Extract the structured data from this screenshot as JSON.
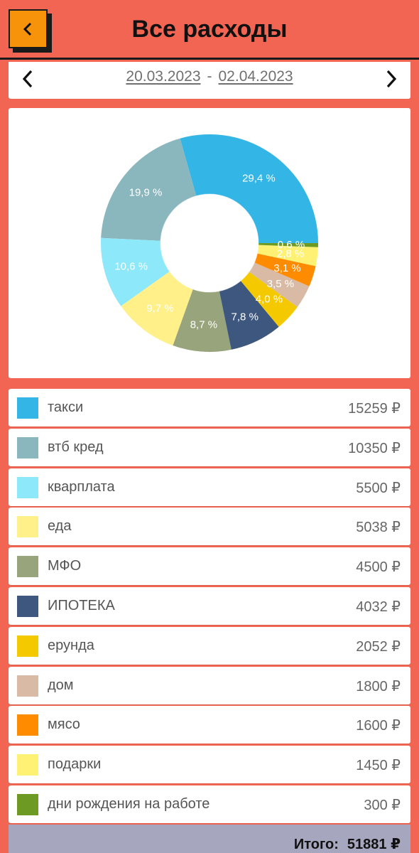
{
  "header": {
    "title": "Все расходы",
    "back_icon": "chevron-left-icon"
  },
  "period": {
    "from": "20.03.2023",
    "separator": "-",
    "to": "02.04.2023",
    "prev_icon": "chevron-left-icon",
    "next_icon": "chevron-right-icon"
  },
  "chart_data": {
    "type": "pie",
    "title": "",
    "donut": true,
    "slices": [
      {
        "label": "такси",
        "value": 29.4,
        "display": "29,4 %",
        "color": "#33b5e5"
      },
      {
        "label": "втб кред",
        "value": 19.9,
        "display": "19,9 %",
        "color": "#8ab6bd"
      },
      {
        "label": "кварплата",
        "value": 10.6,
        "display": "10,6 %",
        "color": "#8de8fa"
      },
      {
        "label": "еда",
        "value": 9.7,
        "display": "9,7 %",
        "color": "#fff08a"
      },
      {
        "label": "МФО",
        "value": 8.7,
        "display": "8,7 %",
        "color": "#97a47c"
      },
      {
        "label": "ИПОТЕКА",
        "value": 7.8,
        "display": "7,8 %",
        "color": "#3e577f"
      },
      {
        "label": "ерунда",
        "value": 4.0,
        "display": "4,0 %",
        "color": "#f5c900"
      },
      {
        "label": "дом",
        "value": 3.5,
        "display": "3,5 %",
        "color": "#d9bba5"
      },
      {
        "label": "мясо",
        "value": 3.1,
        "display": "3,1 %",
        "color": "#ff8c00"
      },
      {
        "label": "подарки",
        "value": 2.8,
        "display": "2,8 %",
        "color": "#fff173"
      },
      {
        "label": "дни рождения на работе",
        "value": 0.6,
        "display": "0,6 %",
        "color": "#6d9a22"
      }
    ]
  },
  "expenses": [
    {
      "label": "такси",
      "amount": "15259 ₽",
      "color": "#33b5e5"
    },
    {
      "label": "втб кред",
      "amount": "10350 ₽",
      "color": "#8ab6bd"
    },
    {
      "label": "кварплата",
      "amount": "5500 ₽",
      "color": "#8de8fa"
    },
    {
      "label": "еда",
      "amount": "5038 ₽",
      "color": "#fff08a"
    },
    {
      "label": "МФО",
      "amount": "4500 ₽",
      "color": "#97a47c"
    },
    {
      "label": "ИПОТЕКА",
      "amount": "4032 ₽",
      "color": "#3e577f"
    },
    {
      "label": "ерунда",
      "amount": "2052 ₽",
      "color": "#f5c900"
    },
    {
      "label": "дом",
      "amount": "1800 ₽",
      "color": "#d9bba5"
    },
    {
      "label": "мясо",
      "amount": "1600 ₽",
      "color": "#ff8c00"
    },
    {
      "label": "подарки",
      "amount": "1450 ₽",
      "color": "#fff173"
    },
    {
      "label": "дни рождения на работе",
      "amount": "300 ₽",
      "color": "#6d9a22"
    }
  ],
  "total": {
    "label": "Итого:",
    "value": "51881 ₽"
  },
  "colors": {
    "background": "#f26552",
    "back_button": "#f7930a",
    "total_bar": "#a7a6bf"
  }
}
